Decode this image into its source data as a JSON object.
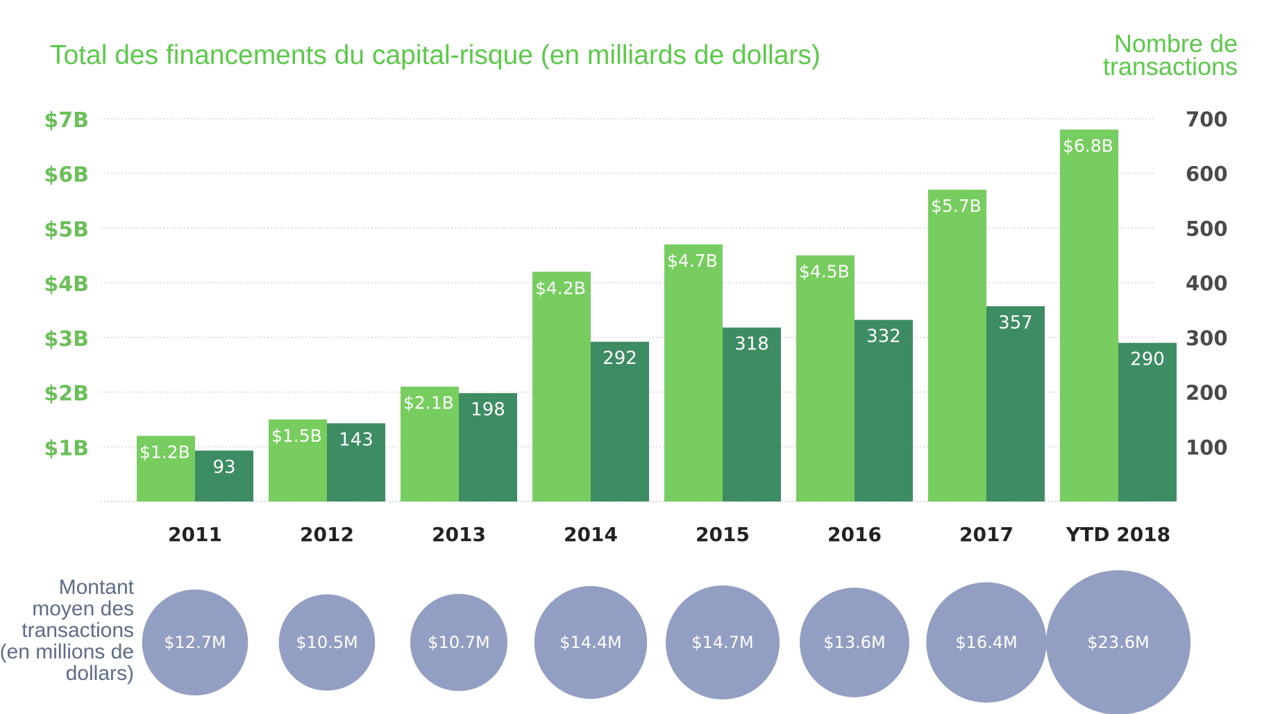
{
  "chart_data": {
    "type": "bar",
    "title": "Total des financements du capital-risque (en milliards de dollars)",
    "right_axis_title": [
      "Nombre de",
      "transactions"
    ],
    "categories": [
      "2011",
      "2012",
      "2013",
      "2014",
      "2015",
      "2016",
      "2017",
      "YTD 2018"
    ],
    "left_axis": {
      "ylim": [
        0,
        7
      ],
      "ticks": [
        1,
        2,
        3,
        4,
        5,
        6,
        7
      ],
      "tick_labels": [
        "$1B",
        "$2B",
        "$3B",
        "$4B",
        "$5B",
        "$6B",
        "$7B"
      ]
    },
    "right_axis": {
      "ylim": [
        0,
        700
      ],
      "ticks": [
        100,
        200,
        300,
        400,
        500,
        600,
        700
      ],
      "tick_labels": [
        "100",
        "200",
        "300",
        "400",
        "500",
        "600",
        "700"
      ]
    },
    "series": [
      {
        "name": "Financement (milliards $)",
        "axis": "left",
        "color": "#77cd5f",
        "values": [
          1.2,
          1.5,
          2.1,
          4.2,
          4.7,
          4.5,
          5.7,
          6.8
        ],
        "labels": [
          "$1.2B",
          "$1.5B",
          "$2.1B",
          "$4.2B",
          "$4.7B",
          "$4.5B",
          "$5.7B",
          "$6.8B"
        ]
      },
      {
        "name": "Nombre de transactions",
        "axis": "right",
        "color": "#3e8c63",
        "values": [
          93,
          143,
          198,
          292,
          318,
          332,
          357,
          290
        ],
        "labels": [
          "93",
          "143",
          "198",
          "292",
          "318",
          "332",
          "357",
          "290"
        ]
      }
    ],
    "average_deal": {
      "title": [
        "Montant",
        "moyen des",
        "transactions",
        "(en millions de",
        "dollars)"
      ],
      "color": "#929fc2",
      "values": [
        12.7,
        10.5,
        10.7,
        14.4,
        14.7,
        13.6,
        16.4,
        23.6
      ],
      "labels": [
        "$12.7M",
        "$10.5M",
        "$10.7M",
        "$14.4M",
        "$14.7M",
        "$13.6M",
        "$16.4M",
        "$23.6M"
      ]
    }
  }
}
